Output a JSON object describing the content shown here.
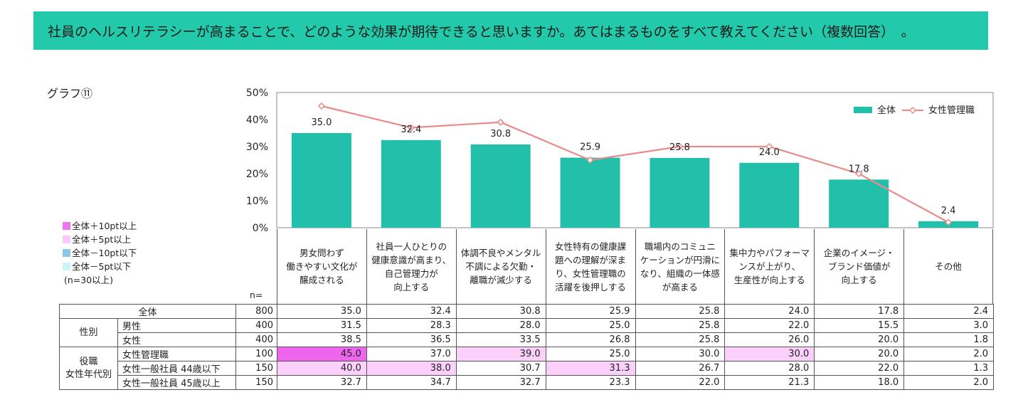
{
  "question": "社員のヘルスリテラシーが高まることで、どのような効果が期待できると思いますか。あてはまるものをすべて教えてください（複数回答）　。",
  "graph_title": "グラフ⑪",
  "legend_left": {
    "items": [
      {
        "label": "全体＋10pt以上",
        "color": "#ee77ee"
      },
      {
        "label": "全体＋5pt以上",
        "color": "#fbc8fb"
      },
      {
        "label": "全体－10pt以下",
        "color": "#8ec5ea"
      },
      {
        "label": "全体－5pt以下",
        "color": "#c9f5f8"
      }
    ],
    "note": "(n=30以上)"
  },
  "n_label": "n=",
  "colors": {
    "bar": "#22c0aa",
    "line": "#e98a8a",
    "highlight_strong": "#ee66ee",
    "highlight_light": "#fbd0fb",
    "header": "#22c9aa"
  },
  "chart_data": {
    "type": "bar",
    "title": "グラフ⑪",
    "categories": [
      "男女問わず\n働きやすい文化が\n醸成される",
      "社員一人ひとりの\n健康意識が高まり、\n自己管理力が\n向上する",
      "体調不良やメンタル\n不調による欠勤・\n離職が減少する",
      "女性特有の健康課\n題への理解が深ま\nり、女性管理職の\n活躍を後押しする",
      "職場内のコミュニ\nケーションが円滑に\nなり、組織の一体感\nが高まる",
      "集中力やパフォーマ\nンスが上がり、\n生産性が向上する",
      "企業のイメージ・\nブランド価値が\n向上する",
      "その他"
    ],
    "series": [
      {
        "name": "全体",
        "type": "bar",
        "values": [
          35.0,
          32.4,
          30.8,
          25.9,
          25.8,
          24.0,
          17.8,
          2.4
        ]
      },
      {
        "name": "女性管理職",
        "type": "line",
        "values": [
          45.0,
          37.0,
          39.0,
          25.0,
          30.0,
          30.0,
          20.0,
          2.0
        ]
      }
    ],
    "data_labels": [
      "35.0",
      "32.4",
      "30.8",
      "25.9",
      "25.8",
      "24.0",
      "17.8",
      "2.4"
    ],
    "ylim": [
      0,
      50
    ],
    "yticks": [
      "0%",
      "10%",
      "20%",
      "30%",
      "40%",
      "50%"
    ],
    "legend": "top-right",
    "xlabel": "",
    "ylabel": ""
  },
  "table": {
    "rows": [
      {
        "group": "",
        "label": "全体",
        "n": "800",
        "values": [
          "35.0",
          "32.4",
          "30.8",
          "25.9",
          "25.8",
          "24.0",
          "17.8",
          "2.4"
        ],
        "hl": [
          "",
          "",
          "",
          "",
          "",
          "",
          "",
          ""
        ]
      },
      {
        "group": "性別",
        "label": "男性",
        "n": "400",
        "values": [
          "31.5",
          "28.3",
          "28.0",
          "25.0",
          "25.8",
          "22.0",
          "15.5",
          "3.0"
        ],
        "hl": [
          "",
          "",
          "",
          "",
          "",
          "",
          "",
          ""
        ]
      },
      {
        "group": "",
        "label": "女性",
        "n": "400",
        "values": [
          "38.5",
          "36.5",
          "33.5",
          "26.8",
          "25.8",
          "26.0",
          "20.0",
          "1.8"
        ],
        "hl": [
          "",
          "",
          "",
          "",
          "",
          "",
          "",
          ""
        ]
      },
      {
        "group": "役職\n女性年代別",
        "label": "女性管理職",
        "n": "100",
        "values": [
          "45.0",
          "37.0",
          "39.0",
          "25.0",
          "30.0",
          "30.0",
          "20.0",
          "2.0"
        ],
        "hl": [
          "strong",
          "",
          "light",
          "",
          "",
          "light",
          "",
          ""
        ]
      },
      {
        "group": "",
        "label": "女性一般社員 44歳以下",
        "n": "150",
        "values": [
          "40.0",
          "38.0",
          "30.7",
          "31.3",
          "26.7",
          "28.0",
          "22.0",
          "1.3"
        ],
        "hl": [
          "light",
          "light",
          "",
          "light",
          "",
          "",
          "",
          ""
        ]
      },
      {
        "group": "",
        "label": "女性一般社員 45歳以上",
        "n": "150",
        "values": [
          "32.7",
          "34.7",
          "32.7",
          "23.3",
          "22.0",
          "21.3",
          "18.0",
          "2.0"
        ],
        "hl": [
          "",
          "",
          "",
          "",
          "",
          "",
          "",
          ""
        ]
      }
    ]
  }
}
